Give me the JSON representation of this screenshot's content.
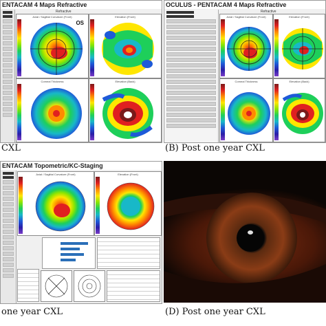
{
  "panel_a": {
    "title": "ENTACAM   4 Maps Refractive",
    "caption": "CXL",
    "eye_label": "OS",
    "map_titles": [
      "Refractive",
      "Axial / Sagittal Curvature (Front)",
      "Elevation (Front)",
      "Corneal Thickness",
      "Elevation (Back)"
    ]
  },
  "panel_b": {
    "title": "OCULUS  -  PENTACAM   4 Maps Refractive",
    "caption": "(B) Post one year CXL",
    "map_titles": [
      "Refractive",
      "Axial / Sagittal Curvature (Front)",
      "Elevation (Front)",
      "Corneal Thickness",
      "Elevation (Back)"
    ]
  },
  "panel_c": {
    "title": "ENTACAM   Topometric/KC-Staging",
    "caption": "one year CXL",
    "map_titles": [
      "Axial / Sagittal Curvature (Front)",
      "Elevation (Front)"
    ]
  },
  "panel_d": {
    "caption": "(D) Post one year CXL"
  },
  "colors": {
    "map_red": "#e02020",
    "map_yellow": "#ffe600",
    "map_green": "#1ecf5a",
    "map_cyan": "#18b8c8",
    "map_blue": "#1e5ad8",
    "iris_brown": "#8a3c16",
    "bar_blue": "#2a6fb8"
  },
  "icons": [
    "crosshair-icon",
    "color-scale-icon"
  ]
}
